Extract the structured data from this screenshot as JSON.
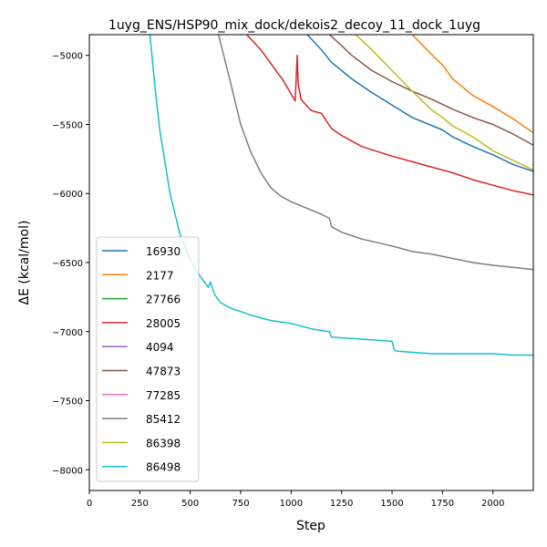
{
  "chart_data": {
    "type": "line",
    "title": "1uyg_ENS/HSP90_mix_dock/dekois2_decoy_11_dock_1uyg",
    "xlabel": "Step",
    "ylabel": "ΔE (kcal/mol)",
    "xlim": [
      0,
      2200
    ],
    "ylim": [
      -8150,
      -4850
    ],
    "xticks": [
      0,
      250,
      500,
      750,
      1000,
      1250,
      1500,
      1750,
      2000
    ],
    "yticks": [
      -8000,
      -7500,
      -7000,
      -6500,
      -6000,
      -5500,
      -5000
    ],
    "grid": false,
    "legend_position": "lower-left",
    "series": [
      {
        "name": "16930",
        "color": "#1f77b4",
        "x": [
          1080,
          1150,
          1200,
          1300,
          1400,
          1500,
          1600,
          1700,
          1750,
          1800,
          1900,
          2000,
          2100,
          2200
        ],
        "y": [
          -4850,
          -4960,
          -5050,
          -5170,
          -5270,
          -5360,
          -5450,
          -5510,
          -5540,
          -5590,
          -5660,
          -5720,
          -5790,
          -5840
        ]
      },
      {
        "name": "2177",
        "color": "#ff7f0e",
        "x": [
          1600,
          1700,
          1750,
          1800,
          1900,
          2000,
          2100,
          2200
        ],
        "y": [
          -4850,
          -5000,
          -5070,
          -5170,
          -5290,
          -5370,
          -5460,
          -5560
        ]
      },
      {
        "name": "27766",
        "color": "#2ca02c",
        "x": [],
        "y": []
      },
      {
        "name": "28005",
        "color": "#d62728",
        "x": [
          780,
          850,
          900,
          960,
          1000,
          1020,
          1030,
          1035,
          1050,
          1080,
          1100,
          1150,
          1200,
          1250,
          1350,
          1500,
          1600,
          1700,
          1800,
          1900,
          2000,
          2100,
          2200
        ],
        "y": [
          -4850,
          -4960,
          -5060,
          -5180,
          -5280,
          -5330,
          -5000,
          -5210,
          -5320,
          -5370,
          -5400,
          -5420,
          -5530,
          -5580,
          -5660,
          -5730,
          -5770,
          -5810,
          -5850,
          -5900,
          -5940,
          -5980,
          -6010
        ]
      },
      {
        "name": "4094",
        "color": "#9467bd",
        "x": [],
        "y": []
      },
      {
        "name": "47873",
        "color": "#8c564b",
        "x": [
          1190,
          1250,
          1300,
          1400,
          1500,
          1600,
          1700,
          1800,
          1900,
          2000,
          2100,
          2200
        ],
        "y": [
          -4850,
          -4930,
          -5000,
          -5110,
          -5190,
          -5260,
          -5320,
          -5390,
          -5450,
          -5500,
          -5570,
          -5650
        ]
      },
      {
        "name": "77285",
        "color": "#e377c2",
        "x": [],
        "y": []
      },
      {
        "name": "85412",
        "color": "#7f7f7f",
        "x": [
          640,
          700,
          750,
          800,
          850,
          900,
          950,
          1000,
          1050,
          1100,
          1150,
          1190,
          1200,
          1250,
          1350,
          1500,
          1600,
          1700,
          1800,
          1900,
          2000,
          2100,
          2200
        ],
        "y": [
          -4850,
          -5200,
          -5500,
          -5700,
          -5850,
          -5960,
          -6020,
          -6060,
          -6090,
          -6120,
          -6150,
          -6180,
          -6240,
          -6280,
          -6330,
          -6380,
          -6420,
          -6440,
          -6470,
          -6500,
          -6520,
          -6535,
          -6550
        ]
      },
      {
        "name": "86398",
        "color": "#bcbd22",
        "x": [
          1320,
          1400,
          1500,
          1600,
          1700,
          1750,
          1800,
          1900,
          2000,
          2100,
          2200
        ],
        "y": [
          -4850,
          -4960,
          -5110,
          -5260,
          -5400,
          -5450,
          -5510,
          -5590,
          -5690,
          -5760,
          -5830
        ]
      },
      {
        "name": "86498",
        "color": "#17becf",
        "x": [
          300,
          330,
          350,
          400,
          450,
          500,
          550,
          590,
          600,
          620,
          650,
          700,
          800,
          900,
          1000,
          1100,
          1190,
          1200,
          1300,
          1400,
          1500,
          1510,
          1520,
          1600,
          1700,
          1800,
          1900,
          2000,
          2100,
          2200
        ],
        "y": [
          -4850,
          -5300,
          -5550,
          -6000,
          -6300,
          -6480,
          -6600,
          -6680,
          -6640,
          -6730,
          -6790,
          -6830,
          -6880,
          -6920,
          -6940,
          -6980,
          -7000,
          -7040,
          -7050,
          -7060,
          -7070,
          -7130,
          -7140,
          -7150,
          -7160,
          -7160,
          -7160,
          -7160,
          -7170,
          -7170
        ]
      }
    ]
  }
}
